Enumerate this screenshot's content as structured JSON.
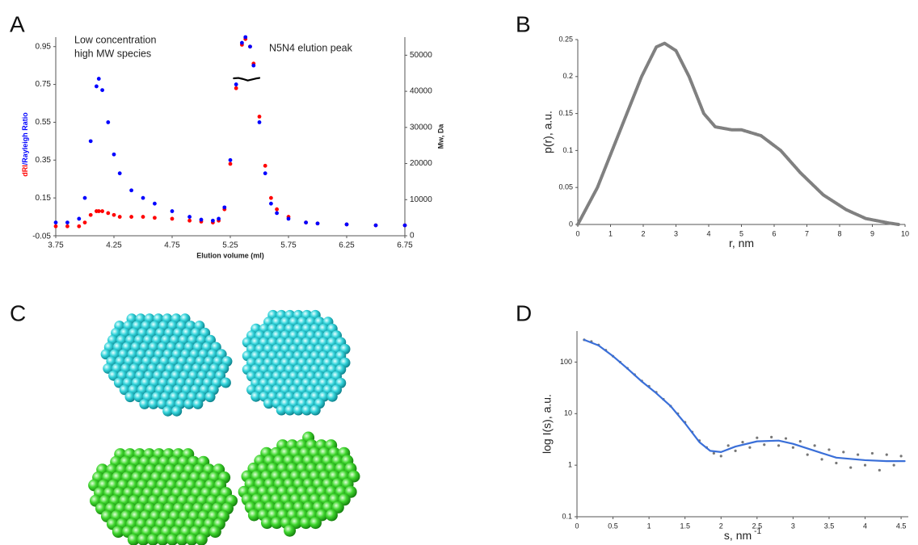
{
  "panel_labels": [
    "A",
    "B",
    "C",
    "D"
  ],
  "chart_data": [
    {
      "type": "line",
      "xlabel": "Elution volume (ml)",
      "ylabel": [
        "dRI",
        "/Rayleigh Ratio"
      ],
      "ylabel_colors": [
        "#ff0000",
        "#0000ff"
      ],
      "y2label": "Mw, Da",
      "annotations": [
        "Low concentration",
        "high MW species",
        "N5N4 elution peak"
      ],
      "x": [
        3.75,
        3.85,
        3.95,
        4.0,
        4.05,
        4.1,
        4.12,
        4.15,
        4.2,
        4.25,
        4.3,
        4.4,
        4.5,
        4.6,
        4.75,
        4.9,
        5.0,
        5.1,
        5.15,
        5.2,
        5.25,
        5.3,
        5.35,
        5.38,
        5.42,
        5.45,
        5.5,
        5.55,
        5.6,
        5.65,
        5.75,
        5.9,
        6.0,
        6.25,
        6.5,
        6.75
      ],
      "xlim": [
        3.75,
        6.75
      ],
      "xticks": [
        3.75,
        4.25,
        4.75,
        5.25,
        5.75,
        6.25,
        6.75
      ],
      "ylim": [
        -0.05,
        1.0
      ],
      "yticks": [
        -0.05,
        0.15,
        0.35,
        0.55,
        0.75,
        0.95
      ],
      "y2lim": [
        0,
        55000
      ],
      "y2ticks": [
        0,
        10000,
        20000,
        30000,
        40000,
        50000
      ],
      "series": [
        {
          "color": "#ff0000",
          "marker": "dots",
          "values": [
            0.0,
            0.0,
            0.0,
            0.02,
            0.06,
            0.08,
            0.08,
            0.08,
            0.07,
            0.06,
            0.05,
            0.05,
            0.05,
            0.045,
            0.04,
            0.03,
            0.025,
            0.02,
            0.03,
            0.09,
            0.33,
            0.73,
            0.96,
            0.99,
            0.95,
            0.86,
            0.58,
            0.32,
            0.15,
            0.09,
            0.05,
            0.02,
            0.015,
            0.01,
            0.005,
            0.005
          ]
        },
        {
          "color": "#0000ff",
          "marker": "dots",
          "values": [
            0.02,
            0.02,
            0.04,
            0.15,
            0.45,
            0.74,
            0.78,
            0.72,
            0.55,
            0.38,
            0.28,
            0.19,
            0.15,
            0.12,
            0.08,
            0.05,
            0.035,
            0.03,
            0.04,
            0.1,
            0.35,
            0.75,
            0.97,
            1.0,
            0.95,
            0.85,
            0.55,
            0.28,
            0.12,
            0.07,
            0.04,
            0.02,
            0.015,
            0.01,
            0.005,
            0.005
          ]
        },
        {
          "color": "#000000",
          "marker": "line",
          "axis": "y2",
          "x": [
            5.28,
            5.32,
            5.36,
            5.4,
            5.44,
            5.48,
            5.5
          ],
          "values": [
            43600,
            43700,
            43400,
            43000,
            43300,
            43600,
            43700
          ]
        }
      ]
    },
    {
      "type": "line",
      "xlabel": "r, nm",
      "ylabel": "p(r), a.u.",
      "x": [
        0,
        0.6,
        1.05,
        1.5,
        1.95,
        2.4,
        2.65,
        3.0,
        3.4,
        3.85,
        4.2,
        4.7,
        5.0,
        5.6,
        6.2,
        6.8,
        7.5,
        8.2,
        8.8,
        9.5,
        9.8
      ],
      "xlim": [
        0,
        10
      ],
      "xticks": [
        0,
        1,
        2,
        3,
        4,
        5,
        6,
        7,
        8,
        9,
        10
      ],
      "ylim": [
        0,
        0.25
      ],
      "yticks": [
        0,
        0.05,
        0.1,
        0.15,
        0.2,
        0.25
      ],
      "series": [
        {
          "color": "#808080",
          "marker": "line",
          "values": [
            0,
            0.05,
            0.1,
            0.15,
            0.2,
            0.24,
            0.245,
            0.235,
            0.2,
            0.15,
            0.132,
            0.128,
            0.128,
            0.12,
            0.1,
            0.07,
            0.04,
            0.02,
            0.008,
            0.002,
            0
          ]
        }
      ]
    },
    {
      "type": "line",
      "xlabel": "s, nm",
      "xlabel_superscript": "-1",
      "ylabel": "log I(s), a.u.",
      "log_y": true,
      "xlim": [
        0,
        4.6
      ],
      "xticks": [
        0,
        0.5,
        1,
        1.5,
        2,
        2.5,
        3,
        3.5,
        4,
        4.5
      ],
      "ylim": [
        0.1,
        400
      ],
      "yticks": [
        0.1,
        1,
        10,
        100
      ],
      "series": [
        {
          "color": "#777777",
          "marker": "dots",
          "x": [
            0.1,
            0.2,
            0.3,
            0.4,
            0.5,
            0.6,
            0.7,
            0.8,
            0.9,
            1.0,
            1.1,
            1.2,
            1.3,
            1.4,
            1.5,
            1.6,
            1.7,
            1.8,
            1.9,
            2.0,
            2.1,
            2.2,
            2.3,
            2.4,
            2.5,
            2.6,
            2.7,
            2.8,
            2.9,
            3.0,
            3.1,
            3.2,
            3.3,
            3.4,
            3.5,
            3.6,
            3.7,
            3.8,
            3.9,
            4.0,
            4.1,
            4.2,
            4.3,
            4.4,
            4.5
          ],
          "values": [
            270,
            250,
            215,
            170,
            130,
            100,
            76,
            57,
            43,
            34,
            26,
            19,
            14,
            10,
            6.8,
            4.4,
            3.0,
            2.2,
            1.7,
            1.5,
            2.4,
            1.9,
            2.8,
            2.2,
            3.4,
            2.5,
            3.5,
            2.4,
            3.3,
            2.2,
            2.9,
            1.6,
            2.4,
            1.3,
            2.0,
            1.1,
            1.8,
            0.9,
            1.6,
            1.0,
            1.7,
            0.8,
            1.6,
            1.0,
            1.5
          ]
        },
        {
          "color": "#3a6fd8",
          "marker": "line",
          "x": [
            0.1,
            0.3,
            0.5,
            0.7,
            0.9,
            1.1,
            1.3,
            1.5,
            1.7,
            1.85,
            2.0,
            2.2,
            2.5,
            2.8,
            3.0,
            3.3,
            3.6,
            4.0,
            4.3,
            4.55
          ],
          "values": [
            270,
            210,
            130,
            75,
            42,
            25,
            14,
            6.5,
            2.8,
            1.9,
            1.8,
            2.3,
            2.9,
            3.0,
            2.6,
            1.9,
            1.4,
            1.25,
            1.2,
            1.2
          ]
        }
      ]
    }
  ]
}
